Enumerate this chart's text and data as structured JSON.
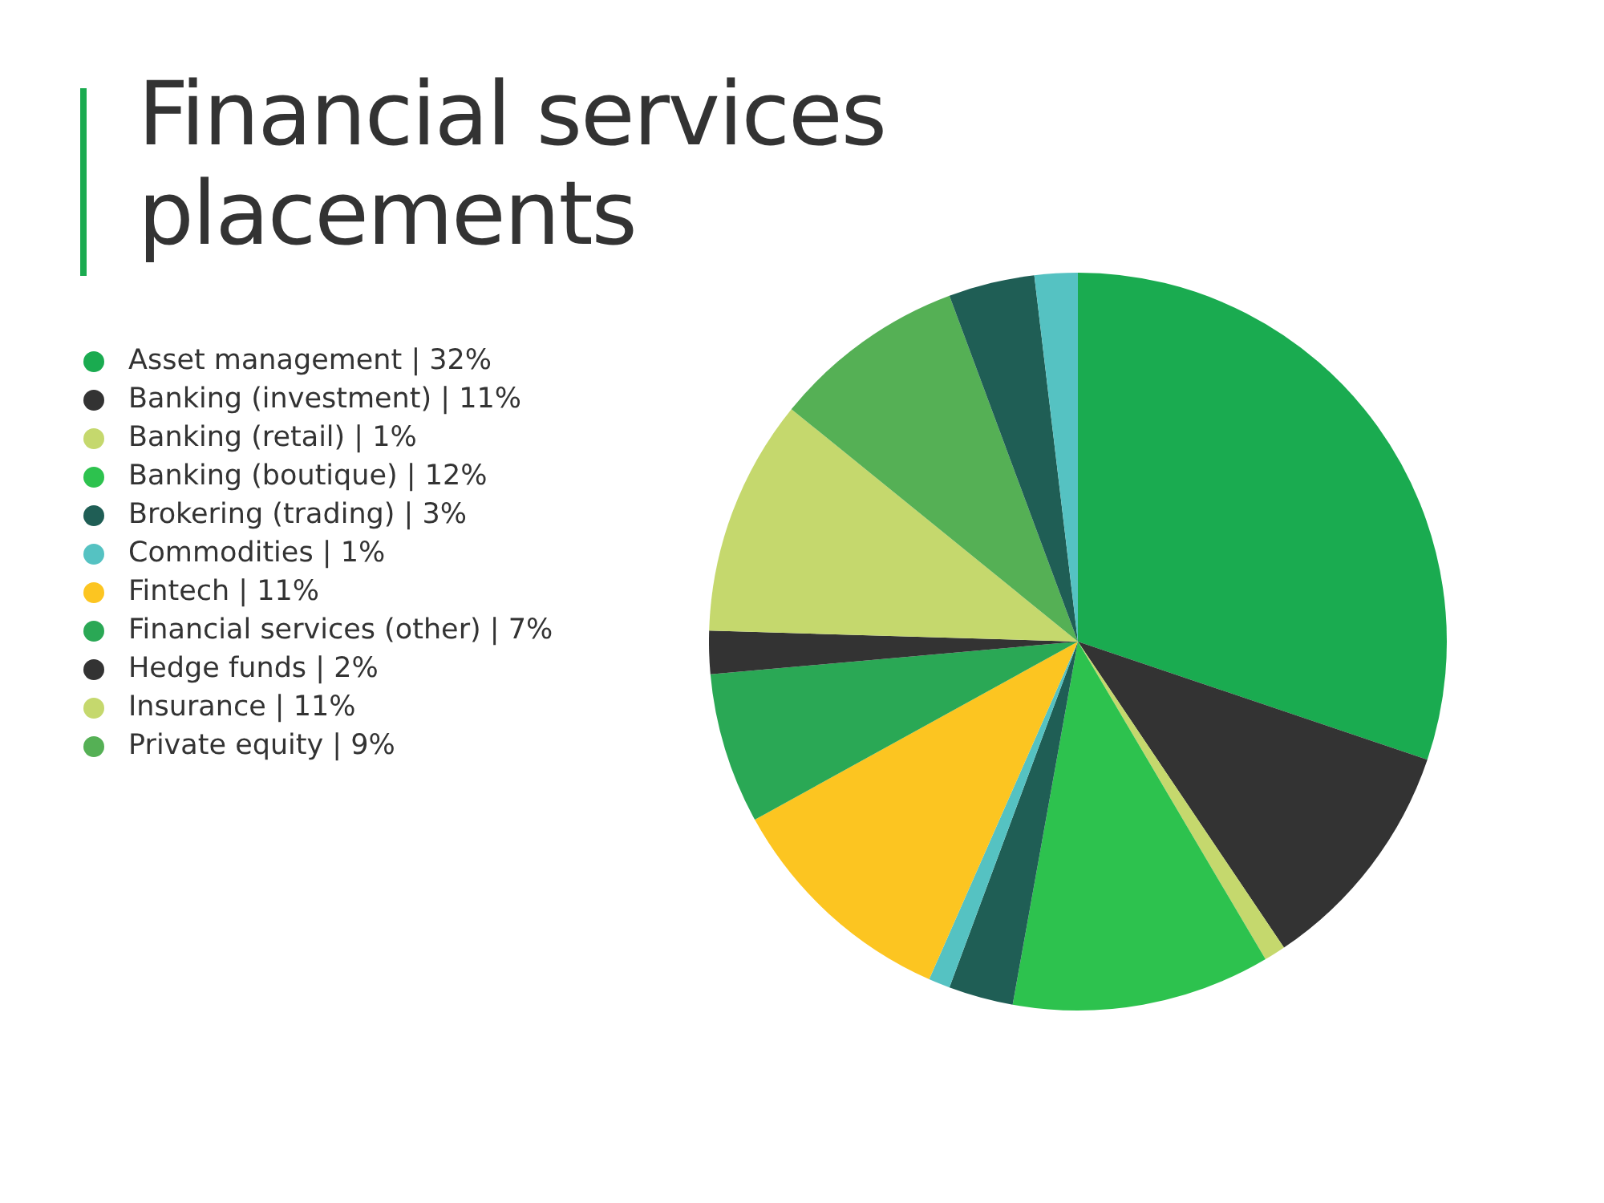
{
  "chart_data": {
    "type": "pie",
    "title": "Financial services placements",
    "categories": [
      "Asset management | 32%",
      "Banking (investment) | 11%",
      "Banking (retail) | 1%",
      "Banking (boutique) | 12%",
      "Brokering (trading) | 3%",
      "Commodities | 1%",
      "Fintech | 11%",
      "Financial services (other) | 7%",
      "Hedge funds | 2%",
      "Insurance | 11%",
      "Private equity | 9%",
      null,
      null
    ],
    "values": [
      32,
      11,
      1,
      12,
      3,
      1,
      11,
      7,
      2,
      11,
      9,
      4,
      2
    ],
    "colors": [
      "#1aab50",
      "#333333",
      "#c5d86d",
      "#2dc24e",
      "#1f5e55",
      "#55c2c2",
      "#fcc521",
      "#2aa855",
      "#333333",
      "#c5d86d",
      "#55b055",
      "#1f5e55",
      "#55c2c2"
    ],
    "legend": "left"
  }
}
